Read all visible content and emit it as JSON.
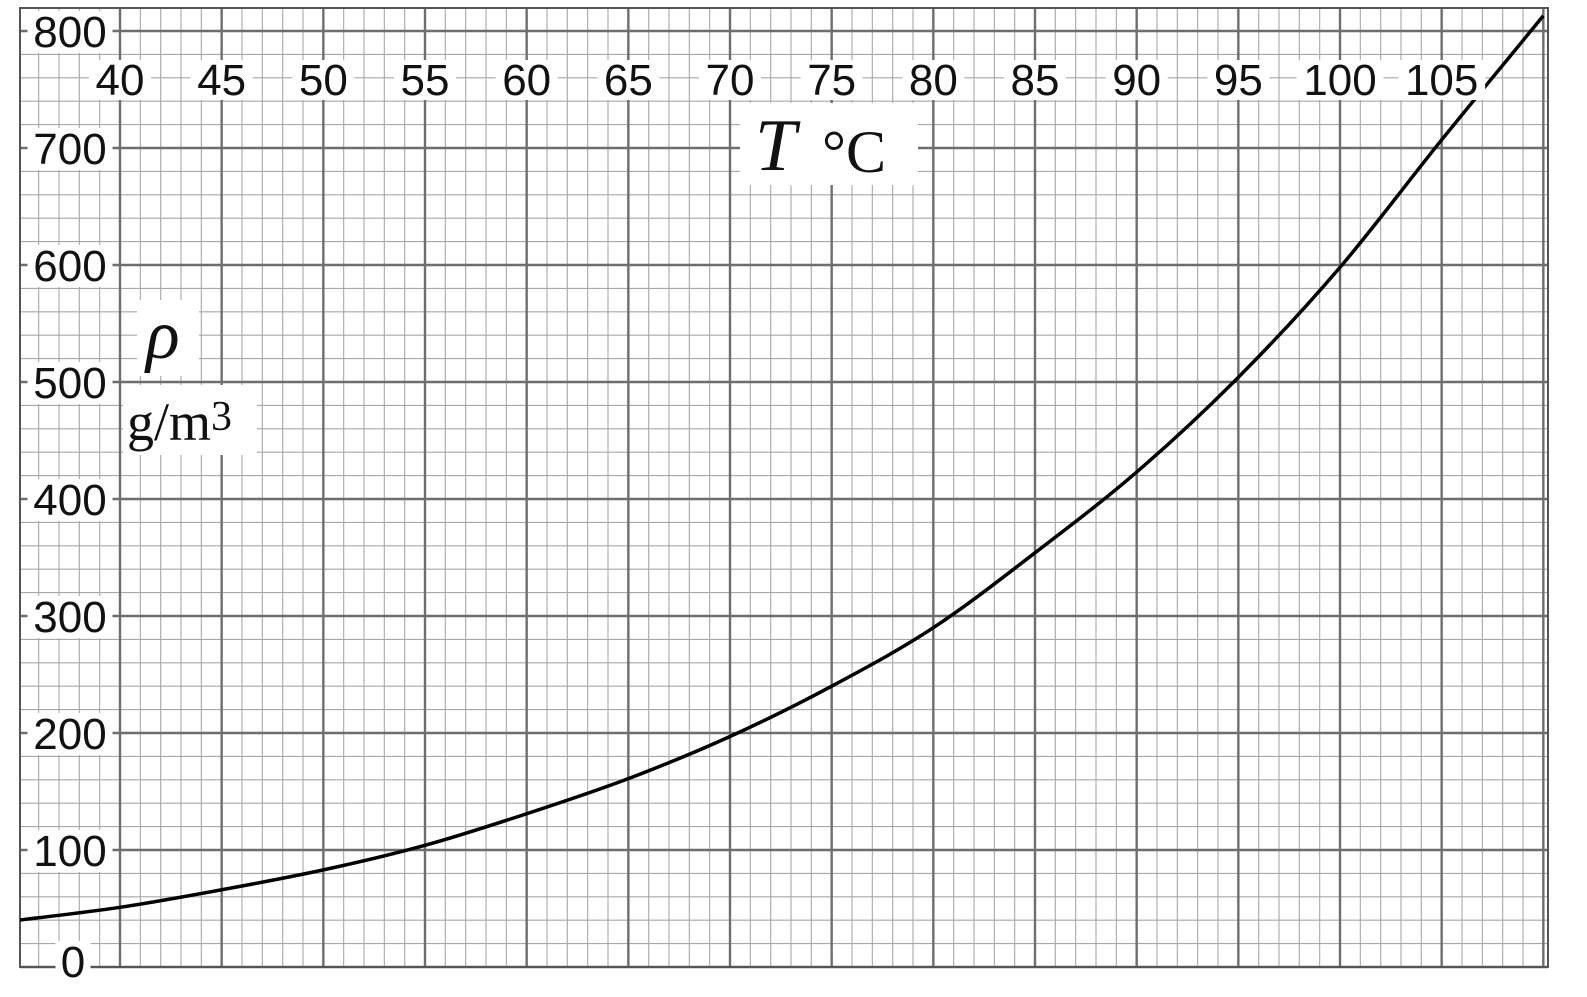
{
  "chart_data": {
    "type": "line",
    "x_label": {
      "symbol": "T",
      "unit": "°C"
    },
    "y_label": {
      "symbol": "ρ",
      "unit_base": "g/m",
      "unit_exp": "3"
    },
    "x_ticks": [
      40,
      45,
      50,
      55,
      60,
      65,
      70,
      75,
      80,
      85,
      90,
      95,
      100,
      105
    ],
    "y_ticks": [
      0,
      100,
      200,
      300,
      400,
      500,
      600,
      700,
      800
    ],
    "xlim": [
      35,
      110
    ],
    "ylim": [
      0,
      810
    ],
    "grid": true,
    "grid_minor_x": 1,
    "grid_minor_y": 20,
    "series": [
      {
        "color": "#000000",
        "points": [
          [
            35,
            40
          ],
          [
            40,
            51
          ],
          [
            45,
            66
          ],
          [
            50,
            83
          ],
          [
            55,
            104
          ],
          [
            60,
            131
          ],
          [
            65,
            161
          ],
          [
            70,
            197
          ],
          [
            75,
            240
          ],
          [
            80,
            290
          ],
          [
            85,
            354
          ],
          [
            90,
            423
          ],
          [
            95,
            504
          ],
          [
            100,
            598
          ],
          [
            105,
            707
          ],
          [
            110,
            813
          ]
        ]
      }
    ]
  }
}
